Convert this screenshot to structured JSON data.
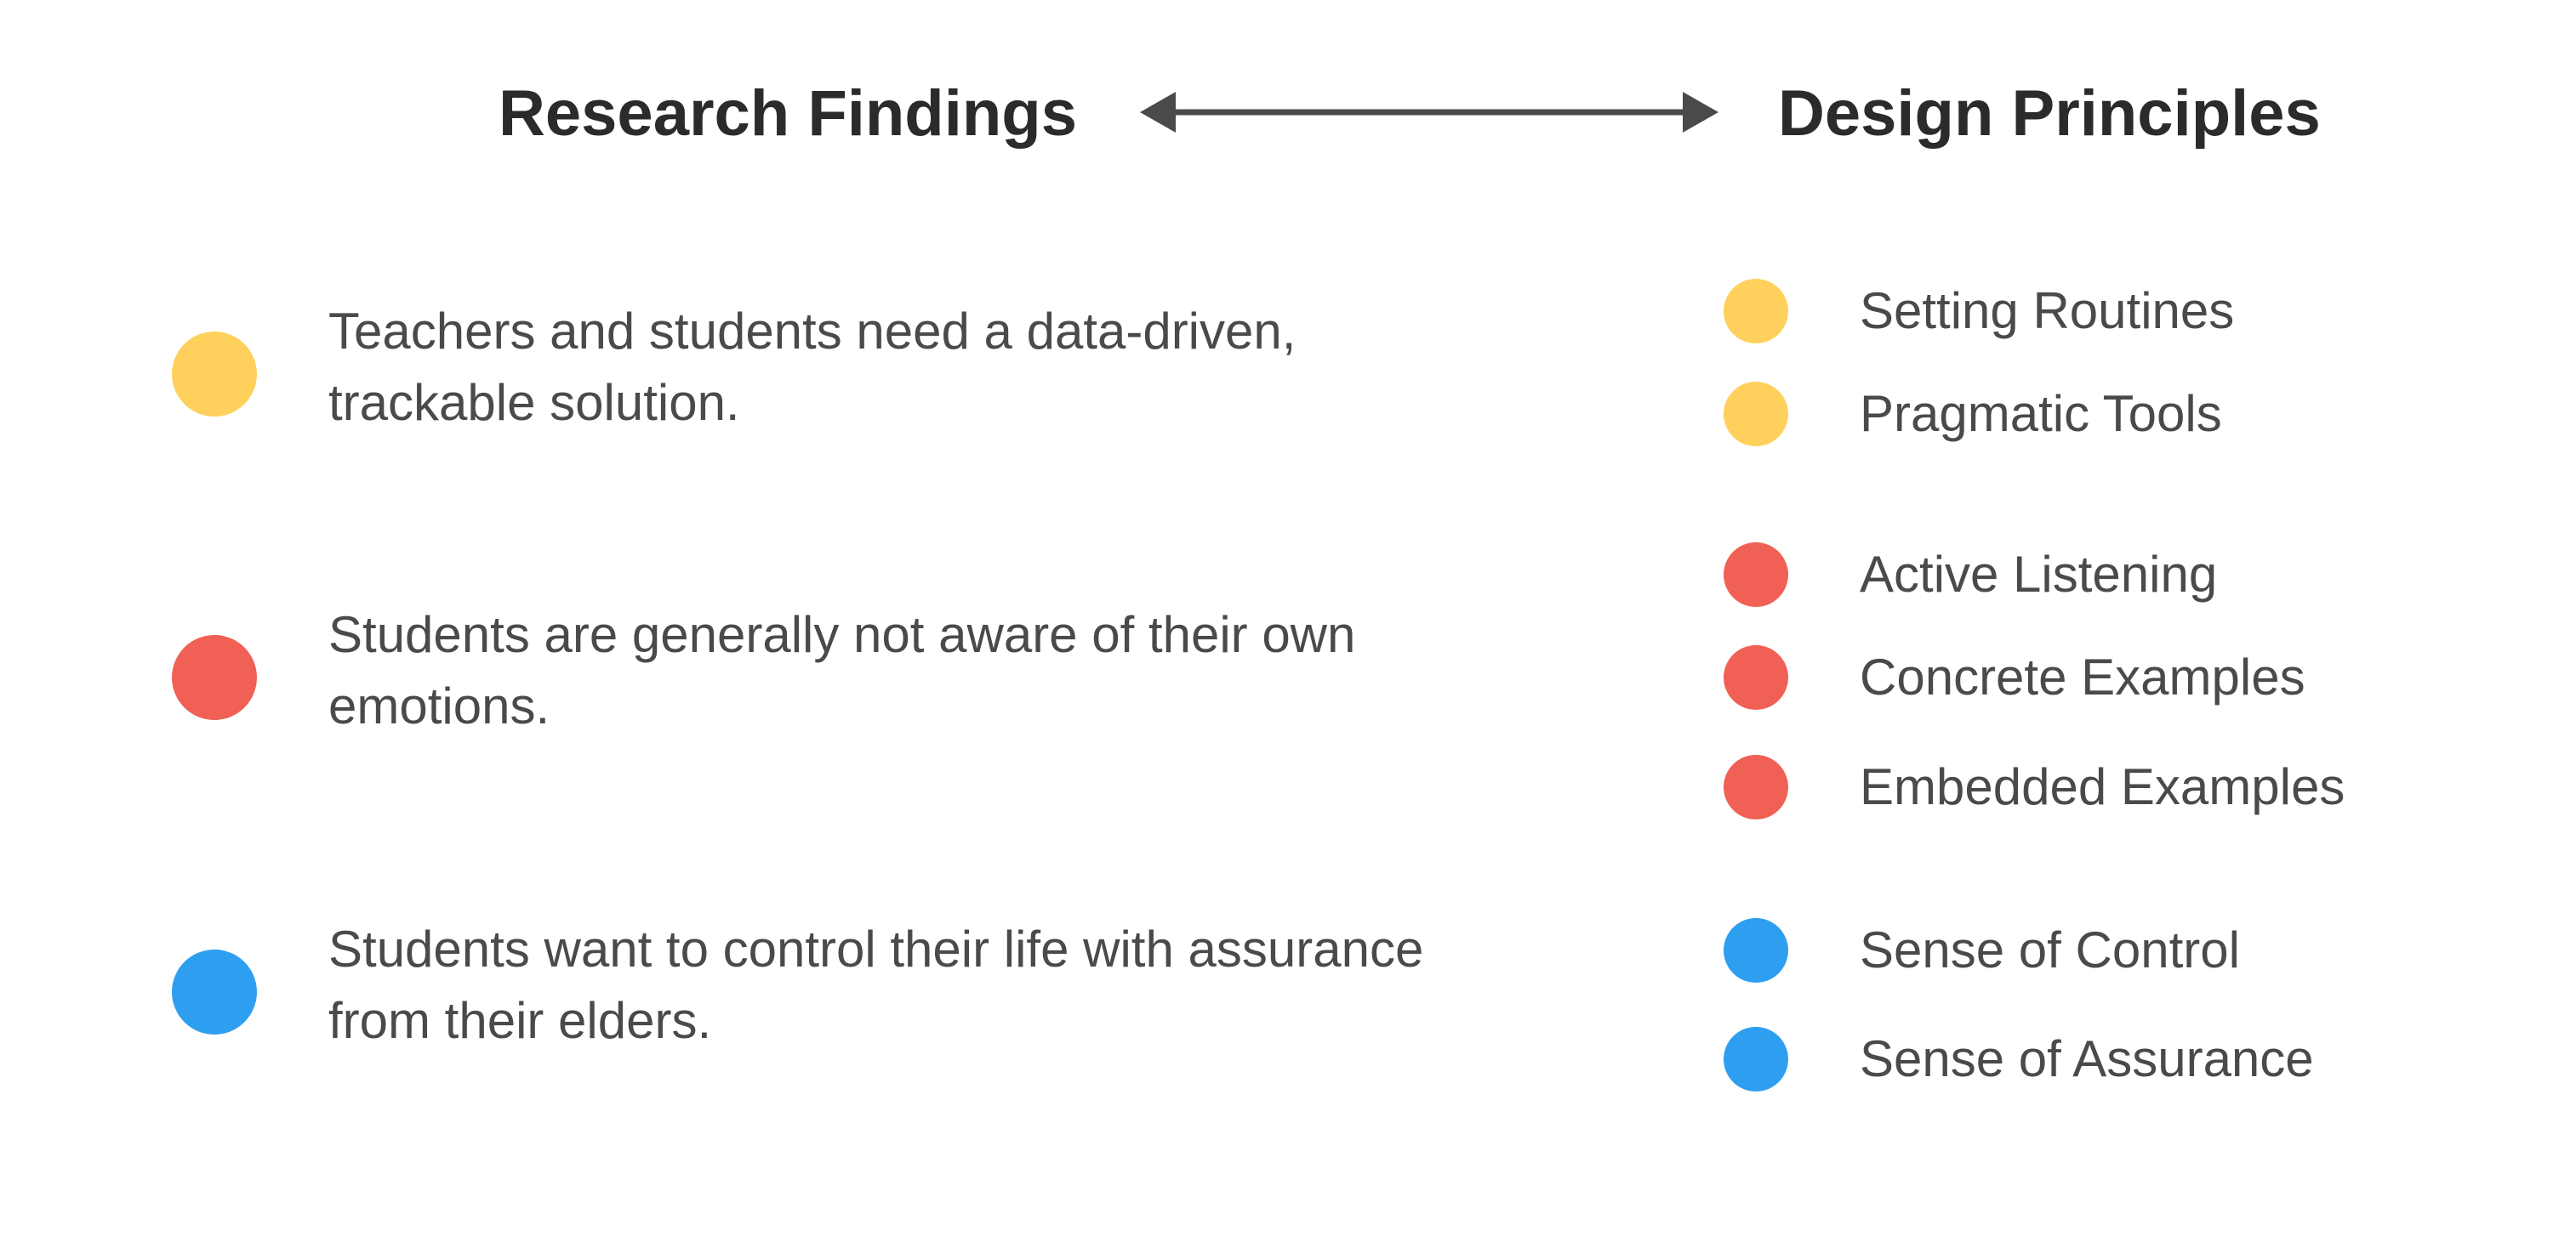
{
  "headers": {
    "left": "Research Findings",
    "right": "Design Principles"
  },
  "connector": {
    "type": "double-headed-arrow",
    "color": "#4a4a4a"
  },
  "colors": {
    "yellow": "#FFD15C",
    "red": "#F06055",
    "blue": "#2E9FF0"
  },
  "findings": [
    {
      "text": "Teachers and students need a data-driven, trackable solution.",
      "color": "#FFD15C"
    },
    {
      "text": "Students are generally not aware of their own emotions.",
      "color": "#F06055"
    },
    {
      "text": "Students want to control their life with assurance from their elders.",
      "color": "#2E9FF0"
    }
  ],
  "principles": [
    {
      "label": "Setting Routines",
      "color": "#FFD15C"
    },
    {
      "label": "Pragmatic Tools",
      "color": "#FFD15C"
    },
    {
      "label": "Active Listening",
      "color": "#F06055"
    },
    {
      "label": "Concrete Examples",
      "color": "#F06055"
    },
    {
      "label": "Embedded Examples",
      "color": "#F06055"
    },
    {
      "label": "Sense of Control",
      "color": "#2E9FF0"
    },
    {
      "label": "Sense of Assurance",
      "color": "#2E9FF0"
    }
  ]
}
